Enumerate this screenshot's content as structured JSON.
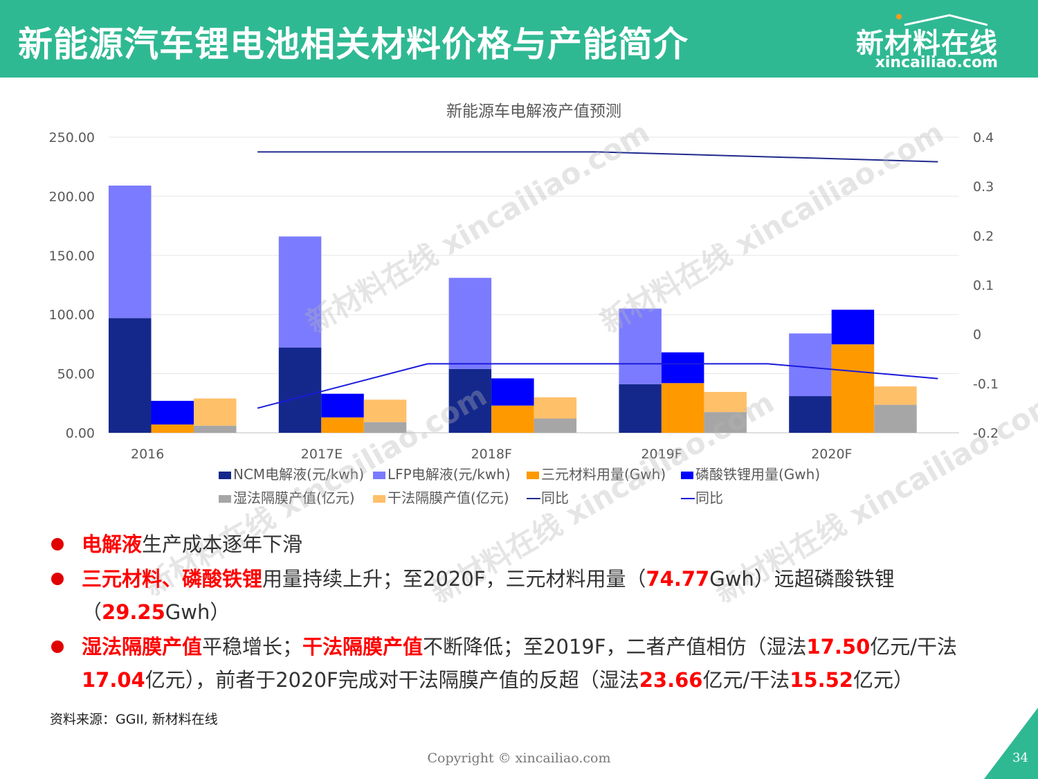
{
  "header": {
    "title": "新能源汽车锂电池相关材料价格与产能简介",
    "brand_cn": "新材料在线",
    "brand_url": "xincailiao.com"
  },
  "watermark": {
    "cn": "新材料在线",
    "url": "xincailiao.com"
  },
  "chart_data": {
    "type": "bar",
    "title": "新能源车电解液产值预测",
    "categories": [
      "2016",
      "2017E",
      "2018F",
      "2019F",
      "2020F"
    ],
    "y_left": {
      "min": 0,
      "max": 250,
      "ticks": [
        "0.00",
        "50.00",
        "100.00",
        "150.00",
        "200.00",
        "250.00"
      ]
    },
    "y_right": {
      "min": -0.2,
      "max": 0.4,
      "ticks": [
        "-0.2",
        "-0.1",
        "0",
        "0.1",
        "0.2",
        "0.3",
        "0.4"
      ]
    },
    "grid": true,
    "legend_position": "bottom",
    "stacks": [
      {
        "group": "electrolyte",
        "series": [
          {
            "name": "NCM电解液(元/kwh)",
            "color": "#14288c",
            "values": [
              97,
              72,
              54,
              41,
              31
            ]
          },
          {
            "name": "LFP电解液(元/kwh)",
            "color": "#7b7bff",
            "values": [
              112,
              94,
              77,
              64,
              53
            ]
          }
        ]
      },
      {
        "group": "material",
        "series": [
          {
            "name": "三元材料用量(Gwh)",
            "color": "#ff9900",
            "values": [
              7,
              13,
              23,
              42,
              74.77
            ]
          },
          {
            "name": "磷酸铁锂用量(Gwh)",
            "color": "#0000ff",
            "values": [
              20,
              20,
              23,
              26,
              29.25
            ]
          }
        ]
      },
      {
        "group": "separator",
        "series": [
          {
            "name": "湿法隔膜产值(亿元)",
            "color": "#a6a6a6",
            "values": [
              6,
              9,
              12,
              17.5,
              23.66
            ]
          },
          {
            "name": "干法隔膜产值(亿元)",
            "color": "#ffc06a",
            "values": [
              23,
              19,
              18,
              17.04,
              15.52
            ]
          }
        ]
      }
    ],
    "lines": [
      {
        "name": "同比",
        "color": "#1f2a8c",
        "axis": "right",
        "x_offset": 0.5,
        "values": [
          0.37,
          0.37,
          0.37,
          0.36,
          0.35
        ]
      },
      {
        "name": "同比",
        "color": "#1a1adb",
        "axis": "right",
        "x_offset": 0.5,
        "values": [
          -0.15,
          -0.06,
          -0.06,
          -0.06,
          -0.09
        ]
      }
    ],
    "legend": [
      {
        "label": "NCM电解液(元/kwh)",
        "color": "#14288c",
        "kind": "box"
      },
      {
        "label": "LFP电解液(元/kwh)",
        "color": "#7b7bff",
        "kind": "box"
      },
      {
        "label": "三元材料用量(Gwh)",
        "color": "#ff9900",
        "kind": "box"
      },
      {
        "label": "磷酸铁锂用量(Gwh)",
        "color": "#0000ff",
        "kind": "box"
      },
      {
        "label": "湿法隔膜产值(亿元)",
        "color": "#a6a6a6",
        "kind": "box"
      },
      {
        "label": "干法隔膜产值(亿元)",
        "color": "#ffc06a",
        "kind": "box"
      },
      {
        "label": "同比",
        "color": "#1f2a8c",
        "kind": "line"
      },
      {
        "label": "同比",
        "color": "#1a1adb",
        "kind": "line"
      }
    ]
  },
  "bullets": [
    {
      "segments": [
        {
          "text": "电解液",
          "red": true
        },
        {
          "text": "生产成本逐年下滑",
          "red": false
        }
      ]
    },
    {
      "segments": [
        {
          "text": "三元材料、磷酸铁锂",
          "red": true
        },
        {
          "text": "用量持续上升；至2020F，三元材料用量（",
          "red": false
        },
        {
          "text": "74.77",
          "red": true
        },
        {
          "text": "Gwh）远超磷酸铁锂（",
          "red": false
        },
        {
          "text": "29.25",
          "red": true
        },
        {
          "text": "Gwh）",
          "red": false
        }
      ]
    },
    {
      "segments": [
        {
          "text": "湿法隔膜产值",
          "red": true
        },
        {
          "text": "平稳增长；",
          "red": false
        },
        {
          "text": "干法隔膜产值",
          "red": true
        },
        {
          "text": "不断降低；至2019F，二者产值相仿（湿法",
          "red": false
        },
        {
          "text": "17.50",
          "red": true
        },
        {
          "text": "亿元/干法",
          "red": false
        },
        {
          "text": "17.04",
          "red": true
        },
        {
          "text": "亿元），前者于2020F完成对干法隔膜产值的反超（湿法",
          "red": false
        },
        {
          "text": "23.66",
          "red": true
        },
        {
          "text": "亿元/干法",
          "red": false
        },
        {
          "text": "15.52",
          "red": true
        },
        {
          "text": "亿元）",
          "red": false
        }
      ]
    }
  ],
  "source": "资料来源：GGII, 新材料在线",
  "copyright": "Copyright © xincailiao.com",
  "page_number": "34",
  "colors": {
    "brand": "#2fb993",
    "highlight": "#ff0000"
  }
}
